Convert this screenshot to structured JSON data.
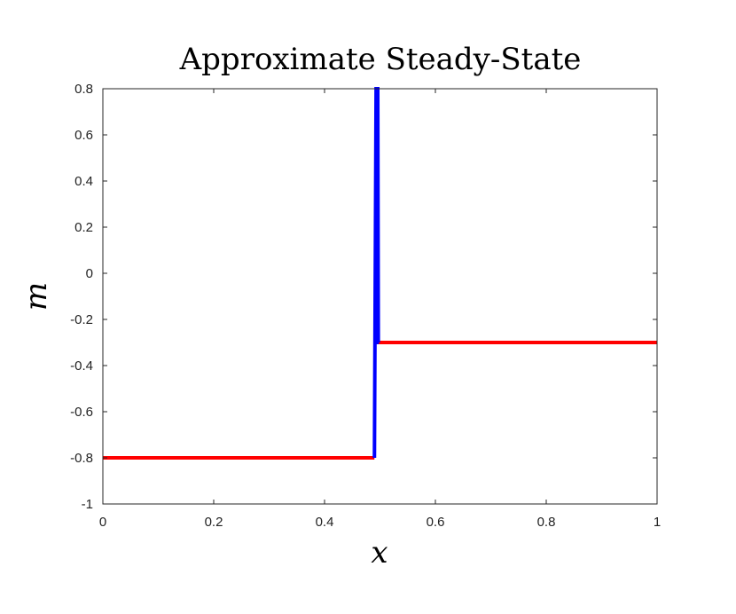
{
  "chart_data": {
    "type": "line",
    "title": "Approximate Steady-State",
    "xlabel": "x",
    "ylabel": "m",
    "xlim": [
      0,
      1
    ],
    "ylim": [
      -1,
      0.8
    ],
    "x_ticks": [
      "0",
      "0.2",
      "0.4",
      "0.6",
      "0.8",
      "1"
    ],
    "y_ticks": [
      "0.8",
      "0.6",
      "0.4",
      "0.2",
      "0",
      "-0.2",
      "-0.4",
      "-0.6",
      "-0.8",
      "-1"
    ],
    "grid": false,
    "series": [
      {
        "color": "#ff0000",
        "x": [
          0,
          0.49
        ],
        "y": [
          -0.8,
          -0.8
        ]
      },
      {
        "color": "#ff0000",
        "x": [
          0.497,
          1
        ],
        "y": [
          -0.3,
          -0.3
        ]
      },
      {
        "color": "#0000ff",
        "x": [
          0.49,
          0.493,
          0.496,
          0.497,
          0.498
        ],
        "y": [
          -0.8,
          0.8,
          0.8,
          -0.3,
          -0.3
        ]
      }
    ]
  }
}
